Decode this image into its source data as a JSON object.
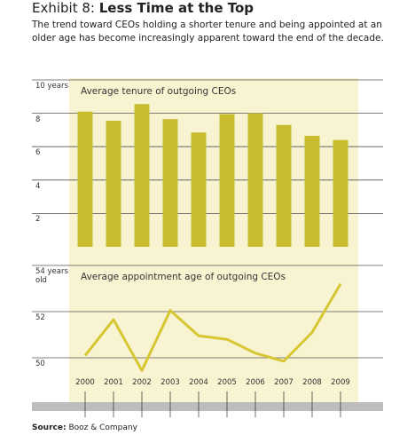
{
  "header": {
    "label": "Exhibit 8:",
    "title": "Less Time at the Top",
    "subtitle": "The trend toward CEOs holding a shorter tenure and being appointed at an older age has become increasingly apparent toward the end of the decade."
  },
  "source": {
    "label": "Source:",
    "text": "Booz & Company"
  },
  "chart_data": [
    {
      "type": "bar",
      "title": "Average tenure of outgoing CEOs",
      "color": "#c9bb2e",
      "values": [
        8.1,
        7.55,
        8.55,
        7.65,
        6.85,
        7.95,
        8.0,
        7.3,
        6.65,
        6.4
      ],
      "ylim": [
        0,
        10
      ],
      "yticks": [
        2,
        4,
        6,
        8,
        {
          "value": 10,
          "label": "10 years"
        }
      ],
      "grid": true
    },
    {
      "type": "line",
      "title": "Average appointment age of outgoing CEOs",
      "color": "#d6c632",
      "categories": [
        "2000",
        "2001",
        "2002",
        "2003",
        "2004",
        "2005",
        "2006",
        "2007",
        "2008",
        "2009"
      ],
      "values": [
        50.1,
        51.65,
        49.45,
        52.05,
        50.95,
        50.8,
        50.2,
        49.85,
        51.1,
        53.2
      ],
      "ylim": [
        49,
        54
      ],
      "yticks": [
        50,
        52,
        {
          "value": 54,
          "label": "54 years old"
        }
      ],
      "grid": true
    }
  ]
}
